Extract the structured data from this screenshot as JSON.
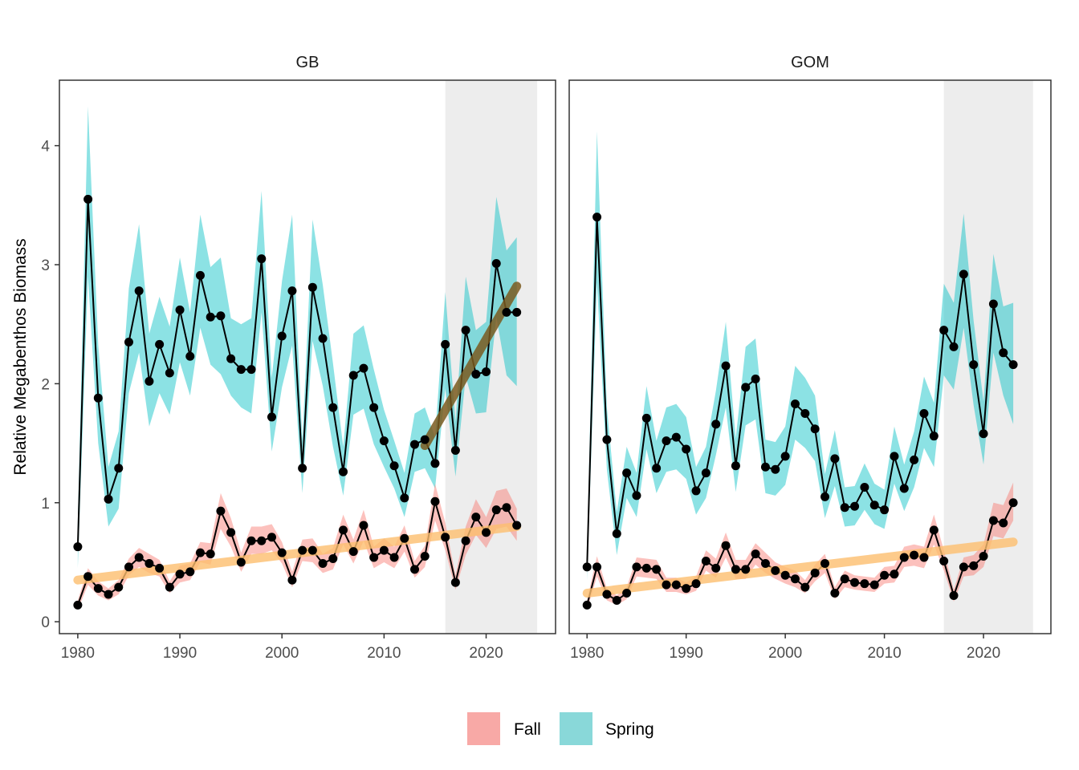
{
  "chart_data": {
    "type": "line",
    "ylabel": "Relative Megabenthos Biomass",
    "xlabel": "",
    "xlim": [
      1978.2,
      2026.8
    ],
    "ylim": [
      -0.1,
      4.55
    ],
    "x_ticks": [
      1980,
      1990,
      2000,
      2010,
      2020
    ],
    "y_ticks": [
      0,
      1,
      2,
      3,
      4
    ],
    "grid": false,
    "legend": {
      "position": "bottom",
      "entries": [
        {
          "label": "Fall",
          "color": "#F8A9A6"
        },
        {
          "label": "Spring",
          "color": "#89D8D9"
        }
      ]
    },
    "colors": {
      "fall_ribbon": "#F8766D",
      "spring_ribbon": "#00BFC4",
      "line": "#000000",
      "fall_trend": "#FDBE6E",
      "spring_trend": "#7A5A1E",
      "shade": "#EBEBEB"
    },
    "panels": [
      {
        "strip": "GB",
        "shade_range": [
          2016,
          2025
        ],
        "series": [
          {
            "name": "Spring",
            "years": [
              1980,
              1981,
              1982,
              1983,
              1984,
              1985,
              1986,
              1987,
              1988,
              1989,
              1990,
              1991,
              1992,
              1993,
              1994,
              1995,
              1996,
              1997,
              1998,
              1999,
              2000,
              2001,
              2002,
              2003,
              2004,
              2005,
              2006,
              2007,
              2008,
              2009,
              2010,
              2011,
              2012,
              2013,
              2014,
              2015,
              2016,
              2017,
              2018,
              2019,
              2020,
              2021,
              2022,
              2023
            ],
            "values": [
              0.63,
              3.55,
              1.88,
              1.03,
              1.29,
              2.35,
              2.78,
              2.02,
              2.33,
              2.09,
              2.62,
              2.23,
              2.91,
              2.56,
              2.57,
              2.21,
              2.12,
              2.12,
              3.05,
              1.72,
              2.4,
              2.78,
              1.29,
              2.81,
              2.38,
              1.8,
              1.26,
              2.07,
              2.13,
              1.8,
              1.52,
              1.31,
              1.04,
              1.49,
              1.53,
              1.33,
              2.33,
              1.44,
              2.45,
              2.08,
              2.1,
              3.01,
              2.6,
              2.6
            ],
            "lower": [
              0.45,
              2.9,
              1.5,
              0.8,
              0.95,
              1.92,
              2.26,
              1.64,
              1.92,
              1.74,
              2.18,
              1.9,
              2.47,
              2.16,
              2.08,
              1.9,
              1.8,
              1.75,
              2.6,
              1.43,
              1.97,
              2.32,
              1.08,
              2.36,
              1.98,
              1.47,
              1.06,
              1.74,
              1.79,
              1.49,
              1.3,
              1.12,
              0.88,
              1.26,
              1.29,
              1.12,
              1.96,
              1.22,
              2.06,
              1.75,
              1.76,
              2.56,
              2.07,
              1.98
            ],
            "upper": [
              0.85,
              4.33,
              2.33,
              1.3,
              1.6,
              2.8,
              3.34,
              2.42,
              2.73,
              2.48,
              3.06,
              2.6,
              3.42,
              2.98,
              3.06,
              2.55,
              2.5,
              2.55,
              3.62,
              2.05,
              2.86,
              3.42,
              1.52,
              3.38,
              2.83,
              2.17,
              1.47,
              2.42,
              2.49,
              2.12,
              1.78,
              1.52,
              1.25,
              1.75,
              1.8,
              1.55,
              2.77,
              1.68,
              2.9,
              2.45,
              2.52,
              3.57,
              3.12,
              3.23
            ]
          },
          {
            "name": "Fall",
            "years": [
              1980,
              1981,
              1982,
              1983,
              1984,
              1985,
              1986,
              1987,
              1988,
              1989,
              1990,
              1991,
              1992,
              1993,
              1994,
              1995,
              1996,
              1997,
              1998,
              1999,
              2000,
              2001,
              2002,
              2003,
              2004,
              2005,
              2006,
              2007,
              2008,
              2009,
              2010,
              2011,
              2012,
              2013,
              2014,
              2015,
              2016,
              2017,
              2018,
              2019,
              2020,
              2021,
              2022,
              2023
            ],
            "values": [
              0.14,
              0.38,
              0.28,
              0.23,
              0.29,
              0.46,
              0.54,
              0.49,
              0.45,
              0.29,
              0.4,
              0.42,
              0.58,
              0.57,
              0.93,
              0.75,
              0.5,
              0.68,
              0.68,
              0.71,
              0.58,
              0.35,
              0.6,
              0.6,
              0.49,
              0.53,
              0.77,
              0.59,
              0.81,
              0.54,
              0.6,
              0.54,
              0.7,
              0.44,
              0.55,
              1.01,
              0.71,
              0.33,
              0.68,
              0.88,
              0.75,
              0.94,
              0.96,
              0.81
            ],
            "lower": [
              0.1,
              0.31,
              0.22,
              0.18,
              0.23,
              0.39,
              0.46,
              0.41,
              0.38,
              0.24,
              0.33,
              0.35,
              0.5,
              0.48,
              0.78,
              0.63,
              0.42,
              0.57,
              0.57,
              0.6,
              0.49,
              0.29,
              0.51,
              0.5,
              0.41,
              0.44,
              0.65,
              0.49,
              0.68,
              0.45,
              0.5,
              0.45,
              0.59,
              0.37,
              0.46,
              0.85,
              0.6,
              0.27,
              0.56,
              0.73,
              0.62,
              0.78,
              0.8,
              0.68
            ],
            "upper": [
              0.18,
              0.45,
              0.34,
              0.28,
              0.35,
              0.53,
              0.62,
              0.57,
              0.52,
              0.34,
              0.47,
              0.49,
              0.67,
              0.66,
              1.08,
              0.87,
              0.58,
              0.8,
              0.8,
              0.82,
              0.67,
              0.42,
              0.69,
              0.7,
              0.57,
              0.62,
              0.9,
              0.69,
              0.94,
              0.63,
              0.7,
              0.63,
              0.81,
              0.51,
              0.64,
              1.16,
              0.83,
              0.39,
              0.8,
              1.03,
              0.88,
              1.1,
              1.12,
              0.95
            ]
          }
        ],
        "trends": [
          {
            "series": "Fall",
            "x": [
              1980,
              2023
            ],
            "y": [
              0.35,
              0.8
            ]
          },
          {
            "series": "Spring",
            "x": [
              2014,
              2023
            ],
            "y": [
              1.48,
              2.82
            ]
          }
        ]
      },
      {
        "strip": "GOM",
        "shade_range": [
          2016,
          2025
        ],
        "series": [
          {
            "name": "Spring",
            "years": [
              1980,
              1981,
              1982,
              1983,
              1984,
              1985,
              1986,
              1987,
              1988,
              1989,
              1990,
              1991,
              1992,
              1993,
              1994,
              1995,
              1996,
              1997,
              1998,
              1999,
              2000,
              2001,
              2002,
              2003,
              2004,
              2005,
              2006,
              2007,
              2008,
              2009,
              2010,
              2011,
              2012,
              2013,
              2014,
              2015,
              2016,
              2017,
              2018,
              2019,
              2020,
              2021,
              2022,
              2023
            ],
            "values": [
              0.46,
              3.4,
              1.53,
              0.74,
              1.25,
              1.06,
              1.71,
              1.29,
              1.52,
              1.55,
              1.45,
              1.1,
              1.25,
              1.66,
              2.15,
              1.31,
              1.97,
              2.04,
              1.3,
              1.28,
              1.39,
              1.83,
              1.75,
              1.62,
              1.05,
              1.37,
              0.96,
              0.97,
              1.13,
              0.98,
              0.94,
              1.39,
              1.12,
              1.36,
              1.75,
              1.56,
              2.45,
              2.31,
              2.92,
              2.16,
              1.58,
              2.67,
              2.26,
              2.16
            ],
            "lower": [
              0.35,
              2.85,
              1.28,
              0.56,
              1.04,
              0.88,
              1.45,
              1.08,
              1.26,
              1.28,
              1.2,
              0.9,
              1.04,
              1.4,
              1.8,
              1.09,
              1.65,
              1.7,
              1.08,
              1.06,
              1.15,
              1.53,
              1.46,
              1.35,
              0.87,
              1.14,
              0.8,
              0.81,
              0.94,
              0.82,
              0.78,
              1.16,
              0.93,
              1.13,
              1.46,
              1.3,
              2.07,
              1.95,
              2.47,
              1.82,
              1.32,
              2.26,
              1.9,
              1.66
            ],
            "upper": [
              0.58,
              4.12,
              1.8,
              0.92,
              1.47,
              1.25,
              1.98,
              1.52,
              1.8,
              1.83,
              1.72,
              1.3,
              1.47,
              1.94,
              2.52,
              1.54,
              2.31,
              2.38,
              1.53,
              1.51,
              1.64,
              2.15,
              2.05,
              1.9,
              1.24,
              1.61,
              1.13,
              1.14,
              1.33,
              1.16,
              1.11,
              1.64,
              1.32,
              1.6,
              2.06,
              1.84,
              2.84,
              2.68,
              3.43,
              2.53,
              1.85,
              3.09,
              2.65,
              2.68
            ]
          },
          {
            "name": "Fall",
            "years": [
              1980,
              1981,
              1982,
              1983,
              1984,
              1985,
              1986,
              1987,
              1988,
              1989,
              1990,
              1991,
              1992,
              1993,
              1994,
              1995,
              1996,
              1997,
              1998,
              1999,
              2000,
              2001,
              2002,
              2003,
              2004,
              2005,
              2006,
              2007,
              2008,
              2009,
              2010,
              2011,
              2012,
              2013,
              2014,
              2015,
              2016,
              2017,
              2018,
              2019,
              2020,
              2021,
              2022,
              2023
            ],
            "values": [
              0.14,
              0.46,
              0.23,
              0.18,
              0.24,
              0.46,
              0.45,
              0.44,
              0.31,
              0.31,
              0.28,
              0.32,
              0.51,
              0.45,
              0.64,
              0.44,
              0.44,
              0.57,
              0.49,
              0.43,
              0.39,
              0.36,
              0.29,
              0.41,
              0.49,
              0.24,
              0.36,
              0.33,
              0.32,
              0.31,
              0.39,
              0.4,
              0.54,
              0.56,
              0.54,
              0.77,
              0.51,
              0.22,
              0.46,
              0.47,
              0.55,
              0.85,
              0.83,
              1.0
            ],
            "lower": [
              0.1,
              0.38,
              0.18,
              0.14,
              0.19,
              0.38,
              0.37,
              0.36,
              0.25,
              0.25,
              0.23,
              0.26,
              0.43,
              0.37,
              0.54,
              0.36,
              0.36,
              0.48,
              0.41,
              0.36,
              0.32,
              0.29,
              0.24,
              0.34,
              0.41,
              0.19,
              0.29,
              0.27,
              0.26,
              0.25,
              0.32,
              0.33,
              0.46,
              0.47,
              0.45,
              0.65,
              0.43,
              0.17,
              0.38,
              0.39,
              0.46,
              0.72,
              0.7,
              0.85
            ],
            "upper": [
              0.18,
              0.55,
              0.28,
              0.22,
              0.29,
              0.54,
              0.53,
              0.52,
              0.37,
              0.37,
              0.33,
              0.38,
              0.6,
              0.53,
              0.75,
              0.52,
              0.52,
              0.66,
              0.58,
              0.5,
              0.46,
              0.43,
              0.35,
              0.48,
              0.57,
              0.29,
              0.43,
              0.39,
              0.38,
              0.37,
              0.46,
              0.47,
              0.63,
              0.65,
              0.63,
              0.9,
              0.6,
              0.27,
              0.54,
              0.56,
              0.65,
              1.0,
              0.98,
              1.17
            ]
          }
        ],
        "trends": [
          {
            "series": "Fall",
            "x": [
              1980,
              2023
            ],
            "y": [
              0.24,
              0.67
            ]
          }
        ]
      }
    ]
  }
}
